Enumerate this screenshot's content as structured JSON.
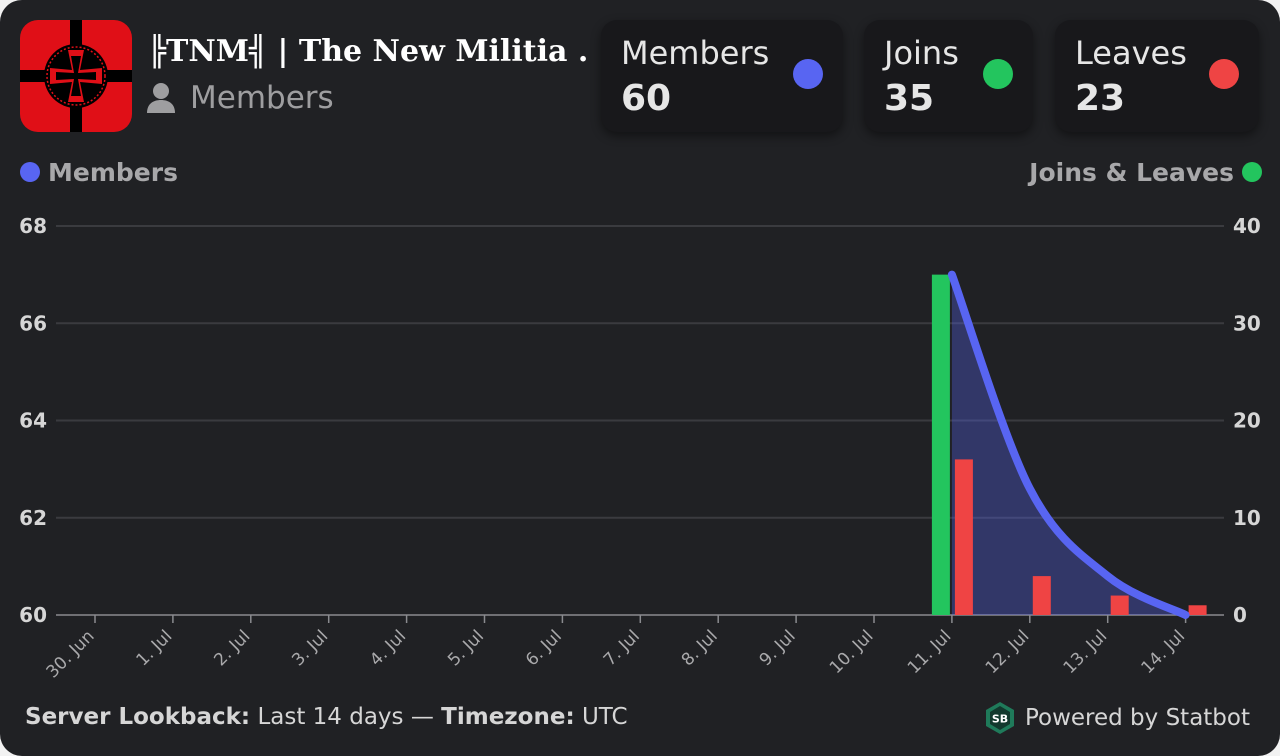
{
  "header": {
    "server_name": "╠TNM╣ | The New Militia ...",
    "subtitle": "Members"
  },
  "stats": [
    {
      "label": "Members",
      "value": "60",
      "color": "#5865f2"
    },
    {
      "label": "Joins",
      "value": "35",
      "color": "#23c55e"
    },
    {
      "label": "Leaves",
      "value": "23",
      "color": "#ef4444"
    }
  ],
  "legend": {
    "left_label": "Members",
    "right_label": "Joins & Leaves"
  },
  "colors": {
    "members": "#5865f2",
    "joins": "#23c55e",
    "leaves": "#ef4444",
    "background": "#202124",
    "card": "#18181b"
  },
  "chart_data": {
    "type": "line",
    "categories": [
      "30. Jun",
      "1. Jul",
      "2. Jul",
      "3. Jul",
      "4. Jul",
      "5. Jul",
      "6. Jul",
      "7. Jul",
      "8. Jul",
      "9. Jul",
      "10. Jul",
      "11. Jul",
      "12. Jul",
      "13. Jul",
      "14. Jul"
    ],
    "y_left": {
      "label": "Members",
      "ticks": [
        60,
        62,
        64,
        66,
        68
      ],
      "range": [
        60,
        68
      ]
    },
    "y_right": {
      "label": "Joins & Leaves",
      "ticks": [
        0,
        10,
        20,
        30,
        40
      ],
      "range": [
        0,
        40
      ]
    },
    "members": {
      "x": [
        "11. Jul",
        "12. Jul",
        "13. Jul",
        "14. Jul"
      ],
      "values": [
        67,
        62.6,
        60.8,
        60
      ]
    },
    "joins": {
      "x": [
        "11. Jul",
        "12. Jul",
        "13. Jul",
        "14. Jul"
      ],
      "values": [
        35,
        0,
        0,
        0
      ]
    },
    "leaves": {
      "x": [
        "11. Jul",
        "12. Jul",
        "13. Jul",
        "14. Jul"
      ],
      "values": [
        16,
        4,
        2,
        1
      ]
    },
    "grid": true
  },
  "footer": {
    "lookback_label": "Server Lookback:",
    "lookback_value": "Last 14 days",
    "separator": "—",
    "timezone_label": "Timezone:",
    "timezone_value": "UTC",
    "powered_by": "Powered by Statbot",
    "logo_text": "SB"
  }
}
